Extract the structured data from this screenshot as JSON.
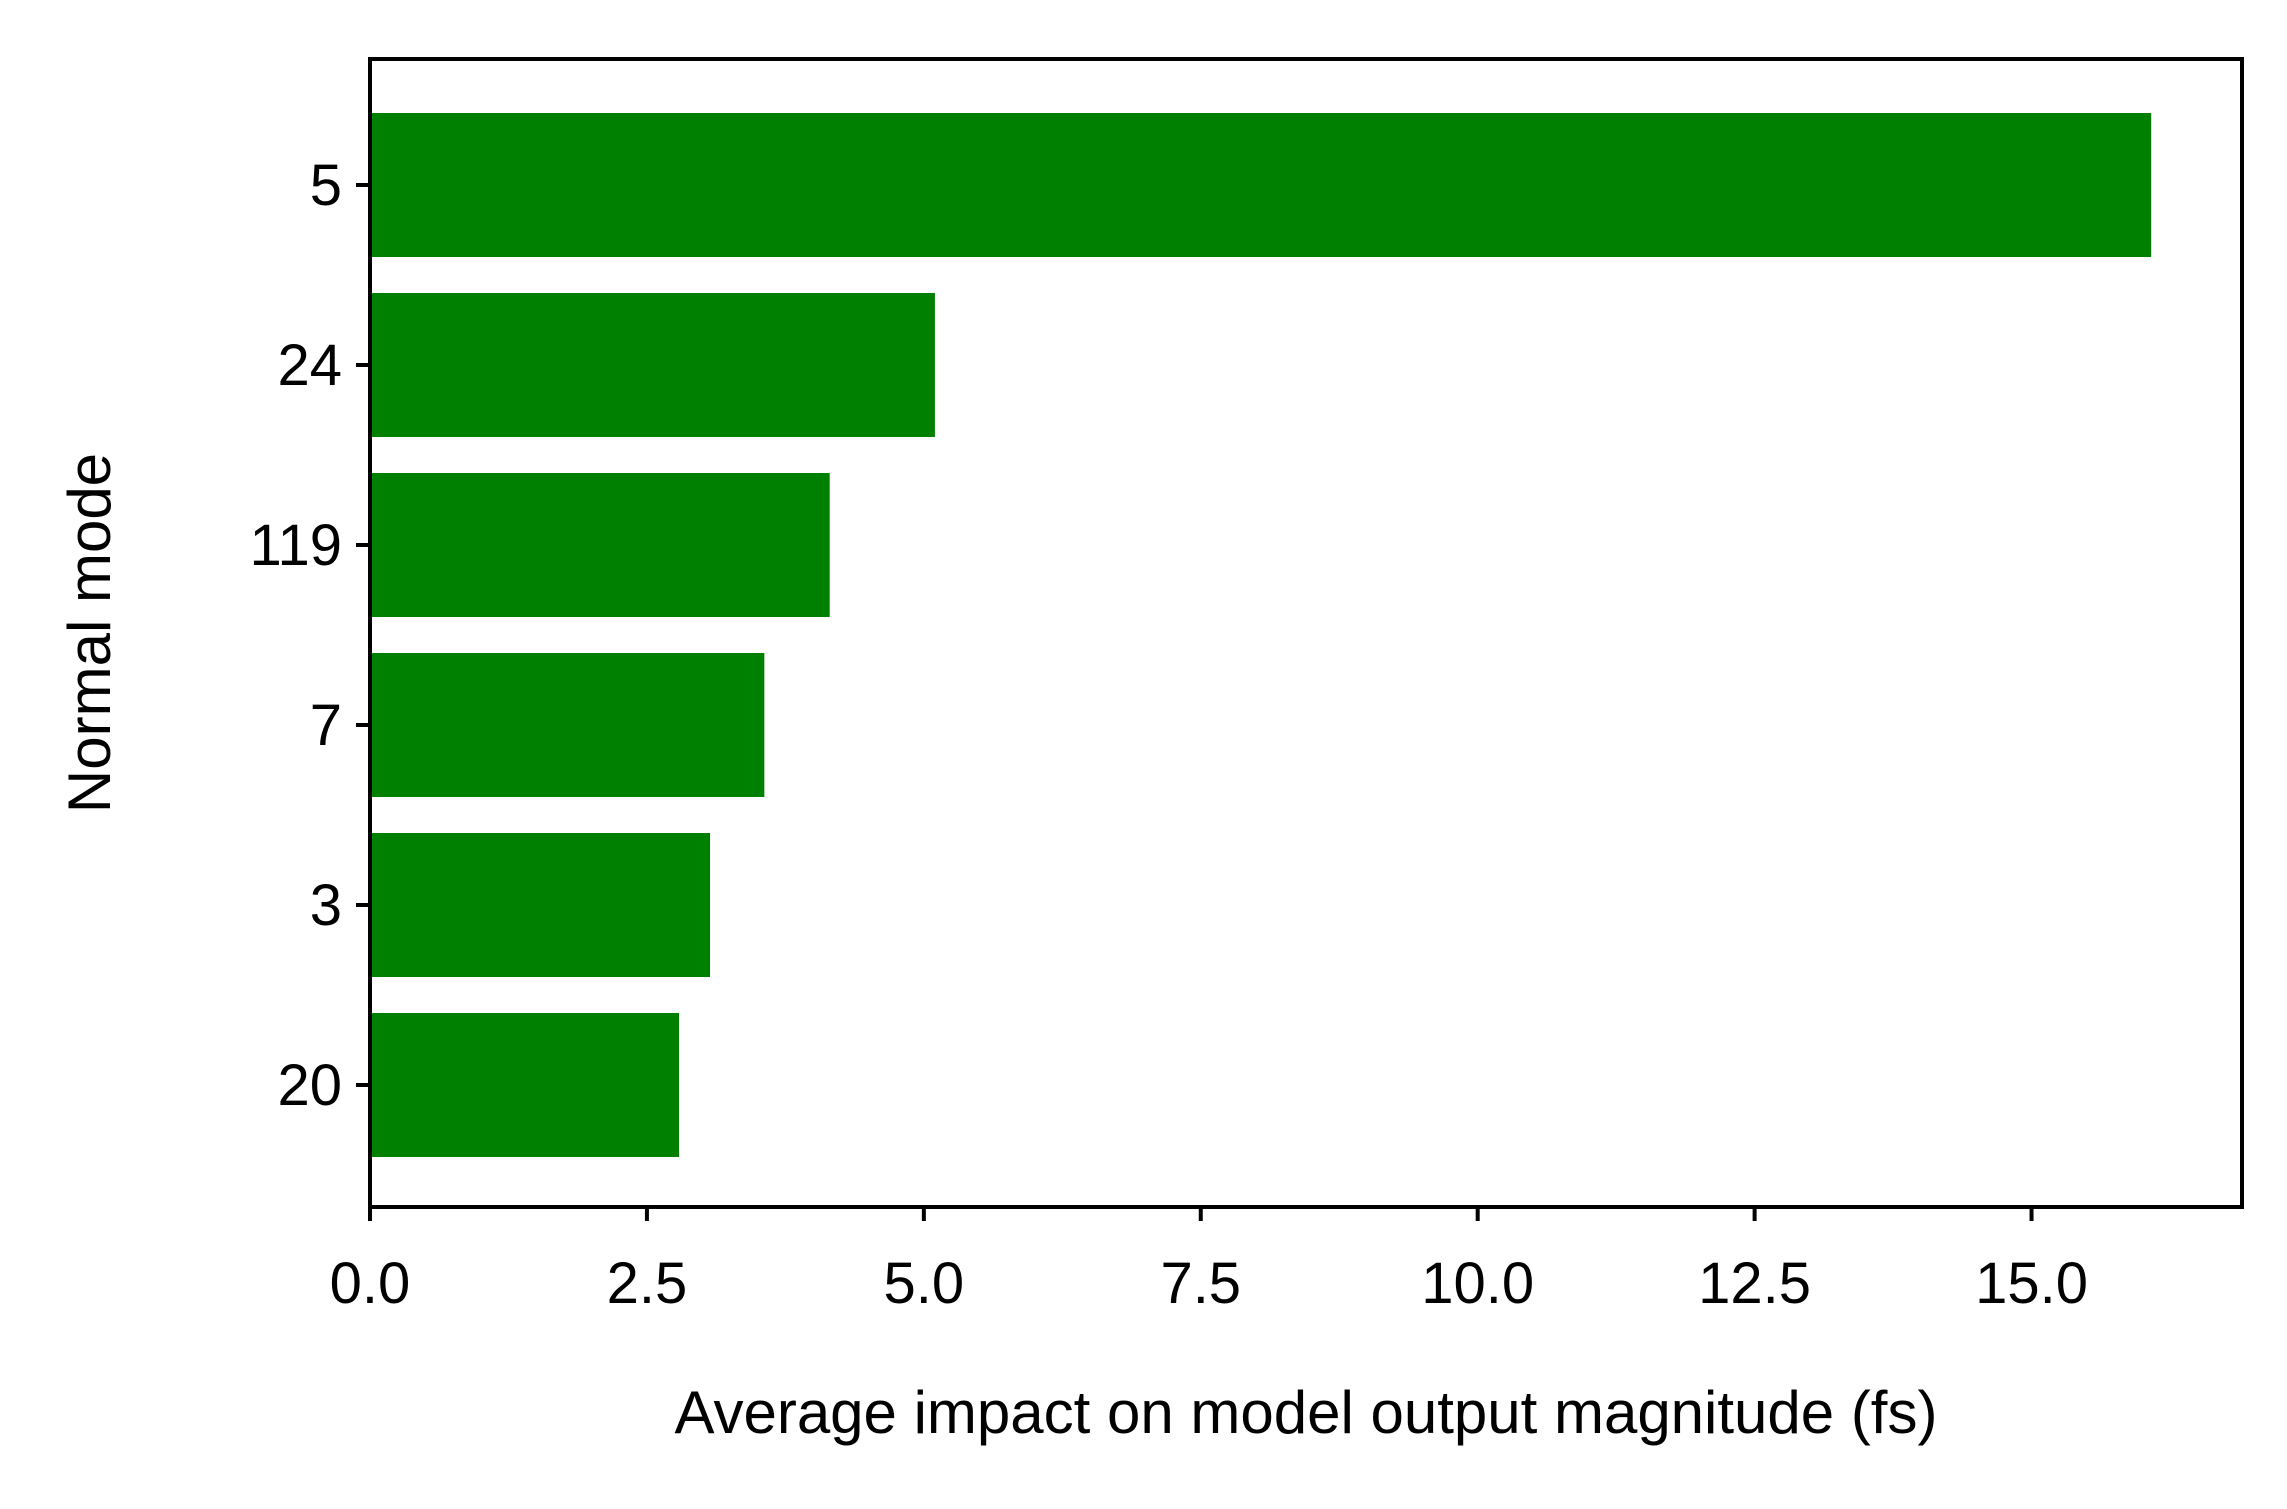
{
  "chart_data": {
    "type": "bar",
    "orientation": "horizontal",
    "categories": [
      "5",
      "24",
      "119",
      "7",
      "3",
      "20"
    ],
    "values": [
      16.08,
      5.1,
      4.15,
      3.56,
      3.07,
      2.79
    ],
    "title": "",
    "xlabel": "Average impact on model output magnitude (fs)",
    "ylabel": "Normal mode",
    "xlim": [
      0,
      16.9
    ],
    "xticks": [
      "0.0",
      "2.5",
      "5.0",
      "7.5",
      "10.0",
      "12.5",
      "15.0"
    ],
    "grid": false,
    "legend": "none",
    "bar_color": "#008000"
  }
}
